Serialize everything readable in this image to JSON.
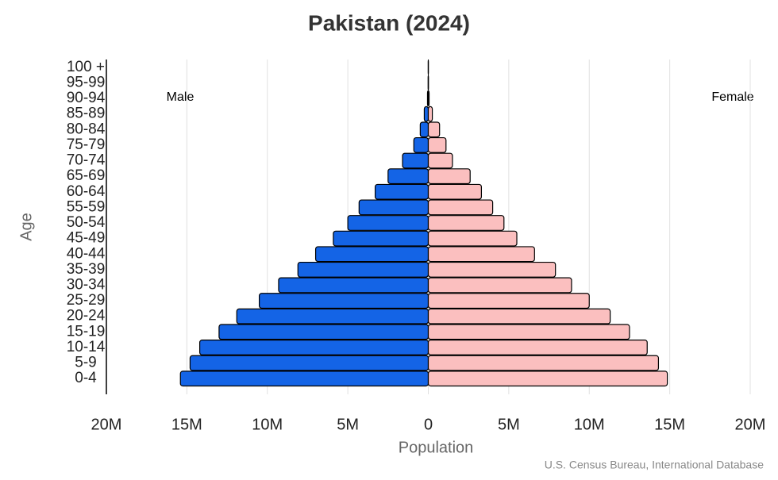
{
  "chart_data": {
    "type": "population-pyramid",
    "title": "Pakistan (2024)",
    "x_label": "Population",
    "y_label": "Age",
    "source": "U.S. Census Bureau, International Database",
    "categories": [
      "0-4",
      "5-9",
      "10-14",
      "15-19",
      "20-24",
      "25-29",
      "30-34",
      "35-39",
      "40-44",
      "45-49",
      "50-54",
      "55-59",
      "60-64",
      "65-69",
      "70-74",
      "75-79",
      "80-84",
      "85-89",
      "90-94",
      "95-99",
      "100 +"
    ],
    "series": [
      {
        "name": "Male",
        "side": "left",
        "color": "#1464e6",
        "values": [
          15400000,
          14800000,
          14200000,
          13000000,
          11900000,
          10500000,
          9300000,
          8100000,
          7000000,
          5900000,
          5000000,
          4300000,
          3300000,
          2500000,
          1600000,
          900000,
          500000,
          250000,
          50000,
          10000,
          5000
        ]
      },
      {
        "name": "Female",
        "side": "right",
        "color": "#fbbfbf",
        "values": [
          14850000,
          14300000,
          13600000,
          12500000,
          11300000,
          10000000,
          8900000,
          7900000,
          6600000,
          5500000,
          4700000,
          4000000,
          3300000,
          2600000,
          1500000,
          1100000,
          700000,
          250000,
          50000,
          10000,
          5000
        ]
      }
    ],
    "xlim": [
      -20000000,
      20000000
    ],
    "xticks": [
      {
        "value": -20000000,
        "label": "20M"
      },
      {
        "value": -15000000,
        "label": "15M"
      },
      {
        "value": -10000000,
        "label": "10M"
      },
      {
        "value": -5000000,
        "label": "5M"
      },
      0,
      {
        "value": 5000000,
        "label": "5M"
      },
      {
        "value": 10000000,
        "label": "10M"
      },
      {
        "value": 15000000,
        "label": "15M"
      },
      {
        "value": 20000000,
        "label": "20M"
      }
    ],
    "grid": true
  }
}
